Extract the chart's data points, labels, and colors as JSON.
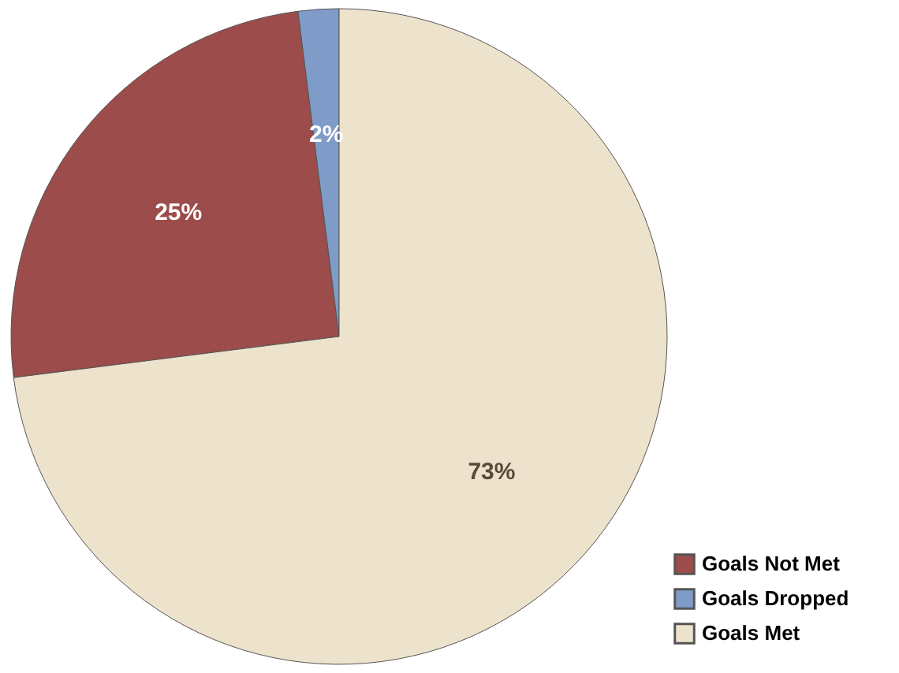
{
  "chart_data": {
    "type": "pie",
    "categories": [
      "Goals Not Met",
      "Goals Dropped",
      "Goals Met"
    ],
    "values": [
      25,
      2,
      73
    ],
    "colors": [
      "#9c4c4a",
      "#7f9cc8",
      "#ede2cc"
    ],
    "value_labels": [
      "25%",
      "2%",
      "73%"
    ],
    "legend": "bottom right"
  }
}
